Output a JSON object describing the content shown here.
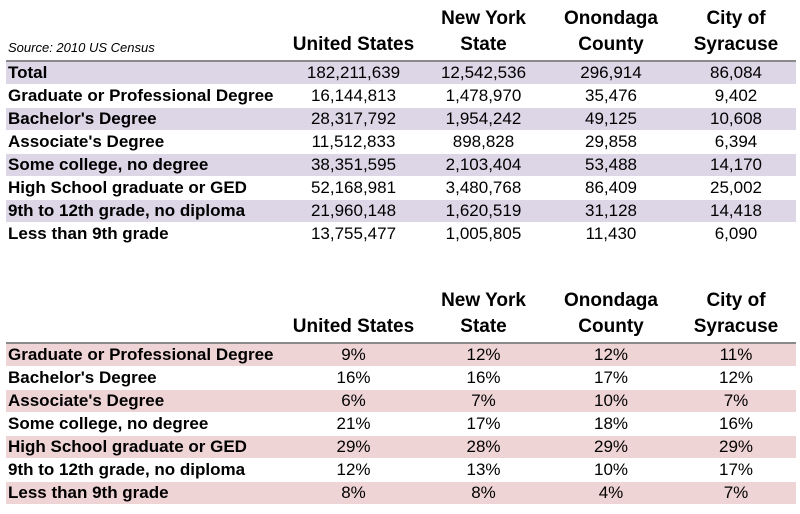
{
  "source_note": "Source: 2010 US Census",
  "columns": [
    "United States",
    "New York\nState",
    "Onondaga\nCounty",
    "City of\nSyracuse"
  ],
  "column_lines": [
    [
      "",
      "United States"
    ],
    [
      "New York",
      "State"
    ],
    [
      "Onondaga",
      "County"
    ],
    [
      "City of",
      "Syracuse"
    ]
  ],
  "counts_table": {
    "rows": [
      {
        "label": "Total",
        "values": [
          "182,211,639",
          "12,542,536",
          "296,914",
          "86,084"
        ]
      },
      {
        "label": "Graduate or Professional Degree",
        "values": [
          "16,144,813",
          "1,478,970",
          "35,476",
          "9,402"
        ]
      },
      {
        "label": "Bachelor's Degree",
        "values": [
          "28,317,792",
          "1,954,242",
          "49,125",
          "10,608"
        ]
      },
      {
        "label": "Associate's Degree",
        "values": [
          "11,512,833",
          "898,828",
          "29,858",
          "6,394"
        ]
      },
      {
        "label": "Some college, no degree",
        "values": [
          "38,351,595",
          "2,103,404",
          "53,488",
          "14,170"
        ]
      },
      {
        "label": "High School graduate or GED",
        "values": [
          "52,168,981",
          "3,480,768",
          "86,409",
          "25,002"
        ]
      },
      {
        "label": "9th to 12th grade, no diploma",
        "values": [
          "21,960,148",
          "1,620,519",
          "31,128",
          "14,418"
        ]
      },
      {
        "label": "Less than 9th grade",
        "values": [
          "13,755,477",
          "1,005,805",
          "11,430",
          "6,090"
        ]
      }
    ]
  },
  "percent_table": {
    "rows": [
      {
        "label": "Graduate or Professional Degree",
        "values": [
          "9%",
          "12%",
          "12%",
          "11%"
        ]
      },
      {
        "label": "Bachelor's Degree",
        "values": [
          "16%",
          "16%",
          "17%",
          "12%"
        ]
      },
      {
        "label": "Associate's Degree",
        "values": [
          "6%",
          "7%",
          "10%",
          "7%"
        ]
      },
      {
        "label": "Some college, no degree",
        "values": [
          "21%",
          "17%",
          "18%",
          "16%"
        ]
      },
      {
        "label": "High School graduate or GED",
        "values": [
          "29%",
          "28%",
          "29%",
          "29%"
        ]
      },
      {
        "label": "9th to 12th grade, no diploma",
        "values": [
          "12%",
          "13%",
          "10%",
          "17%"
        ]
      },
      {
        "label": "Less than 9th grade",
        "values": [
          "8%",
          "8%",
          "4%",
          "7%"
        ]
      }
    ]
  },
  "colors": {
    "counts_row_shade": "#dcd6e6",
    "percent_row_shade": "#efd4d6"
  }
}
